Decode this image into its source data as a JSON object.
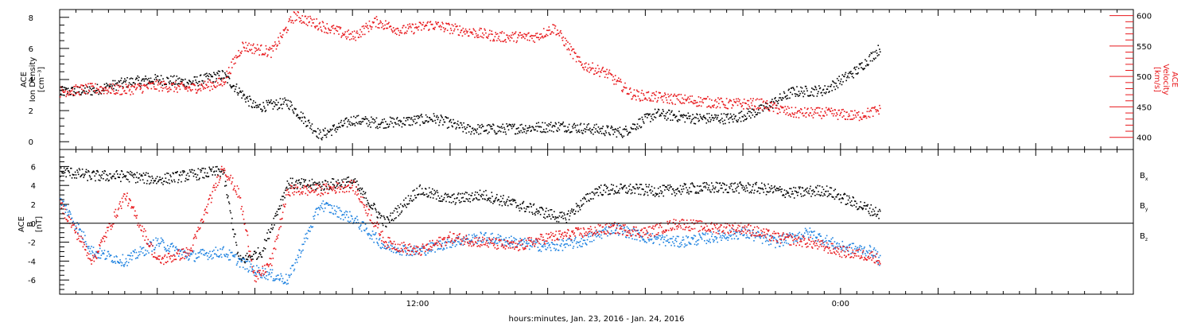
{
  "chart_data": [
    {
      "type": "scatter",
      "panel": "top",
      "ylabel_left": [
        "ACE",
        "Ion Density",
        "[cm⁻³]"
      ],
      "ylabel_right": [
        "ACE",
        "Velocity",
        "[km/s]"
      ],
      "ylim_left": [
        -0.5,
        8.5
      ],
      "ylim_right": [
        380,
        610
      ],
      "yticks_left": [
        0,
        2,
        4,
        6,
        8
      ],
      "yticks_right": [
        400,
        450,
        500,
        550,
        600
      ],
      "x_hours_range": [
        0,
        33
      ],
      "colors": {
        "density": "#000000",
        "velocity": "#e8171b"
      },
      "series": [
        {
          "axis": "left",
          "color": "#000000",
          "x": [
            0,
            1,
            2,
            3,
            4,
            5,
            6,
            7,
            8,
            9,
            9.8,
            10.6,
            11.5,
            12.5,
            13.5,
            14.5,
            15.4,
            16.4,
            17.3,
            18.3,
            19.5,
            20.7,
            21.5,
            22.5,
            23.5,
            24.5,
            25.2
          ],
          "y": [
            3.2,
            3.3,
            3.8,
            4.0,
            3.8,
            4.3,
            2.2,
            2.5,
            0.4,
            1.4,
            1.2,
            1.3,
            1.5,
            0.8,
            0.8,
            0.9,
            1.0,
            0.8,
            0.6,
            1.8,
            1.5,
            1.5,
            2.0,
            3.2,
            3.3,
            4.6,
            6.0
          ]
        },
        {
          "axis": "right",
          "color": "#e8171b",
          "x": [
            0,
            1,
            2,
            3,
            4,
            5,
            5.6,
            6.5,
            7.2,
            8.2,
            9,
            9.7,
            10.5,
            11.4,
            12.4,
            13.5,
            14.6,
            15.2,
            16,
            16.8,
            17.6,
            18.5,
            19.5,
            20.5,
            21.5,
            22.5,
            23.5,
            24.5,
            25.2
          ],
          "y": [
            475,
            480,
            478,
            485,
            480,
            490,
            550,
            540,
            600,
            580,
            565,
            590,
            575,
            585,
            575,
            565,
            565,
            580,
            520,
            505,
            470,
            465,
            460,
            455,
            455,
            440,
            440,
            435,
            445
          ]
        }
      ]
    },
    {
      "type": "scatter",
      "panel": "bottom",
      "ylabel_left": [
        "ACE",
        "B",
        "[nT]"
      ],
      "ylim": [
        -7.5,
        7.8
      ],
      "yticks": [
        -6,
        -4,
        -2,
        0,
        2,
        4,
        6
      ],
      "x_hours_range": [
        0,
        33
      ],
      "xtick_labels": [
        {
          "x": 11,
          "label": "12:00"
        },
        {
          "x": 24,
          "label": "0:00"
        }
      ],
      "xlabel": "hours:minutes, Jan. 23, 2016 - Jan. 24, 2016",
      "legend": [
        "B",
        "B",
        "B"
      ],
      "legend_sub": [
        "x",
        "y",
        "z"
      ],
      "colors": {
        "bx": "#000000",
        "by": "#1e82e0",
        "bz": "#e8171b"
      },
      "series": [
        {
          "name": "Bx",
          "color": "#000000",
          "x": [
            0,
            1,
            2,
            3,
            4,
            5,
            5.5,
            6.2,
            7,
            8,
            9,
            10,
            11,
            12,
            13,
            14,
            15,
            15.5,
            16.5,
            17.5,
            18.5,
            19.5,
            20.5,
            21.5,
            22.5,
            23.5,
            24.5,
            25.2
          ],
          "y": [
            5.5,
            5.0,
            5.0,
            4.6,
            5.1,
            5.5,
            -4.0,
            -3.0,
            4.2,
            4.0,
            4.4,
            0.0,
            3.5,
            2.5,
            3.0,
            2.0,
            1.0,
            0.5,
            3.5,
            3.6,
            3.4,
            3.7,
            3.8,
            3.7,
            3.2,
            3.5,
            2.0,
            1.0
          ]
        },
        {
          "name": "By",
          "color": "#1e82e0",
          "x": [
            0,
            1,
            2,
            3,
            4,
            5,
            6,
            7,
            8,
            9,
            10,
            11,
            12,
            13,
            14,
            15,
            16,
            17,
            18,
            19,
            20,
            21,
            22,
            23,
            24,
            25,
            25.2
          ],
          "y": [
            2.5,
            -3.0,
            -4.0,
            -2.0,
            -3.5,
            -3.0,
            -5.0,
            -6.0,
            2.0,
            0.5,
            -2.5,
            -3.0,
            -2.0,
            -1.5,
            -2.0,
            -2.5,
            -2.0,
            -0.5,
            -1.5,
            -2.0,
            -1.5,
            -1.0,
            -2.0,
            -1.0,
            -2.5,
            -3.0,
            -4.0
          ]
        },
        {
          "name": "Bz",
          "color": "#e8171b",
          "x": [
            0,
            1,
            2,
            3,
            4,
            5,
            5.5,
            6,
            6.5,
            7,
            8,
            9,
            10,
            11,
            12,
            13,
            14,
            15,
            16,
            17,
            18,
            19,
            20,
            21,
            22,
            23,
            24,
            25,
            25.2
          ],
          "y": [
            2.0,
            -4.0,
            3.0,
            -4.0,
            -3.0,
            6.0,
            3.0,
            -6.0,
            -4.0,
            3.5,
            3.5,
            4.0,
            -2.0,
            -3.0,
            -1.5,
            -2.0,
            -2.5,
            -1.5,
            -1.0,
            -0.5,
            -1.0,
            0.0,
            -0.5,
            -0.5,
            -1.5,
            -2.0,
            -3.0,
            -3.5,
            -4.0
          ]
        }
      ]
    }
  ]
}
